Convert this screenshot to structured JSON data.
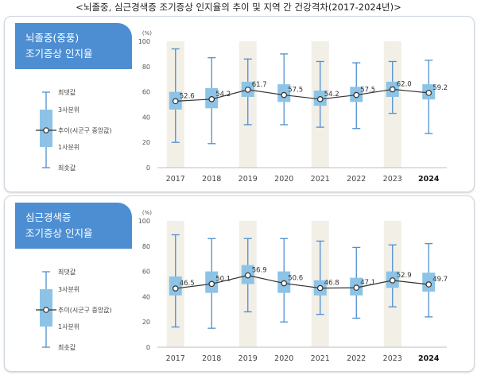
{
  "page_title": "<뇌졸중, 심근경색증 조기증상 인지율의 추이 및 지역 간 건강격차(2017-2024년)>",
  "legend": {
    "max": "최댓값",
    "q3": "3사분위",
    "trend": "추이(시군구 중앙값)",
    "q1": "1사분위",
    "min": "최솟값"
  },
  "colors": {
    "banner": "#4d8ed2",
    "box": "#8cc3e6",
    "whisker": "#4f8fd2",
    "line": "#333333",
    "highlight_column": "#f1efe6"
  },
  "chart_data": [
    {
      "type": "box",
      "title_lines": [
        "뇌졸중(중풍)",
        "조기증상 인지율"
      ],
      "ylabel": "(%)",
      "ylim": [
        0,
        100
      ],
      "yticks": [
        0,
        20,
        40,
        60,
        80,
        100
      ],
      "grid": false,
      "highlight_categories": [
        "2017",
        "2019",
        "2021",
        "2023"
      ],
      "categories": [
        "2017",
        "2018",
        "2019",
        "2020",
        "2021",
        "2022",
        "2023",
        "2024"
      ],
      "median": [
        52.6,
        54.2,
        61.7,
        57.5,
        54.2,
        57.5,
        62.0,
        59.2
      ],
      "q1": [
        46,
        47,
        56,
        52,
        49,
        52,
        56,
        54
      ],
      "q3": [
        60,
        63,
        68,
        66,
        61,
        64,
        68,
        66
      ],
      "min": [
        20,
        19,
        34,
        34,
        32,
        31,
        43,
        27
      ],
      "max": [
        94,
        87,
        86,
        90,
        84,
        83,
        84,
        85
      ]
    },
    {
      "type": "box",
      "title_lines": [
        "심근경색증",
        "조기증상 인지율"
      ],
      "ylabel": "(%)",
      "ylim": [
        0,
        100
      ],
      "yticks": [
        0,
        20,
        40,
        60,
        80,
        100
      ],
      "grid": false,
      "highlight_categories": [
        "2017",
        "2019",
        "2021",
        "2023"
      ],
      "categories": [
        "2017",
        "2018",
        "2019",
        "2020",
        "2021",
        "2022",
        "2023",
        "2024"
      ],
      "median": [
        46.5,
        50.1,
        56.9,
        50.6,
        46.8,
        47.1,
        52.9,
        49.7
      ],
      "q1": [
        41,
        43,
        50,
        43,
        41,
        41,
        47,
        44
      ],
      "q3": [
        56,
        60,
        65,
        60,
        53,
        55,
        60,
        59
      ],
      "min": [
        16,
        15,
        28,
        20,
        26,
        23,
        32,
        24
      ],
      "max": [
        89,
        86,
        86,
        86,
        84,
        79,
        81,
        82
      ]
    }
  ]
}
